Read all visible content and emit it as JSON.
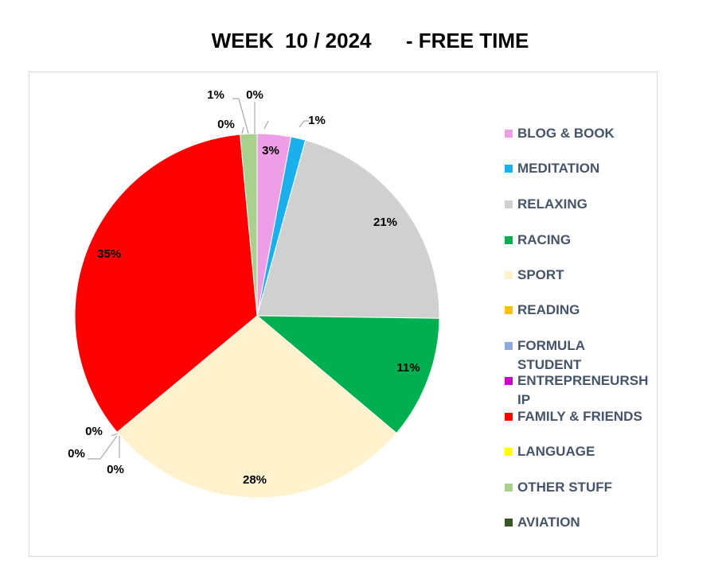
{
  "chart_data": {
    "type": "pie",
    "title": "WEEK  10 / 2024      - FREE TIME",
    "legend_position": "right",
    "slices": [
      {
        "label": "BLOG & BOOK",
        "value": 3,
        "display": "3%",
        "color": "#ee9ee6"
      },
      {
        "label": "MEDITATION",
        "value": 1.3,
        "display": "1%",
        "color": "#1ab0ee"
      },
      {
        "label": "RELAXING",
        "value": 21.1,
        "display": "21%",
        "color": "#d0d0d0"
      },
      {
        "label": "RACING",
        "value": 11,
        "display": "11%",
        "color": "#00b050"
      },
      {
        "label": "SPORT",
        "value": 28,
        "display": "28%",
        "color": "#fff2cc"
      },
      {
        "label": "READING",
        "value": 0,
        "display": "0%",
        "color": "#ffc000"
      },
      {
        "label": "FORMULA STUDENT",
        "value": 0,
        "display": "0%",
        "color": "#8eaadb"
      },
      {
        "label": "ENTREPRENEURSHIP",
        "value": 0,
        "display": "0%",
        "color": "#cc00cc"
      },
      {
        "label": "FAMILY & FRIENDS",
        "value": 34.8,
        "display": "35%",
        "color": "#ff0000"
      },
      {
        "label": "LANGUAGE",
        "value": 0,
        "display": "0%",
        "color": "#ffff00"
      },
      {
        "label": "OTHER STUFF",
        "value": 1.5,
        "display": "1%",
        "color": "#a9d18e"
      },
      {
        "label": "AVIATION",
        "value": 0,
        "display": "0%",
        "color": "#375623"
      }
    ],
    "legend_labels": [
      [
        "BLOG & BOOK"
      ],
      [
        "MEDITATION"
      ],
      [
        "RELAXING"
      ],
      [
        "RACING"
      ],
      [
        "SPORT"
      ],
      [
        "READING"
      ],
      [
        "FORMULA",
        "STUDENT"
      ],
      [
        "ENTREPRENEURSH",
        "IP"
      ],
      [
        "FAMILY & FRIENDS"
      ],
      [
        "LANGUAGE"
      ],
      [
        "OTHER STUFF"
      ],
      [
        "AVIATION"
      ]
    ]
  }
}
